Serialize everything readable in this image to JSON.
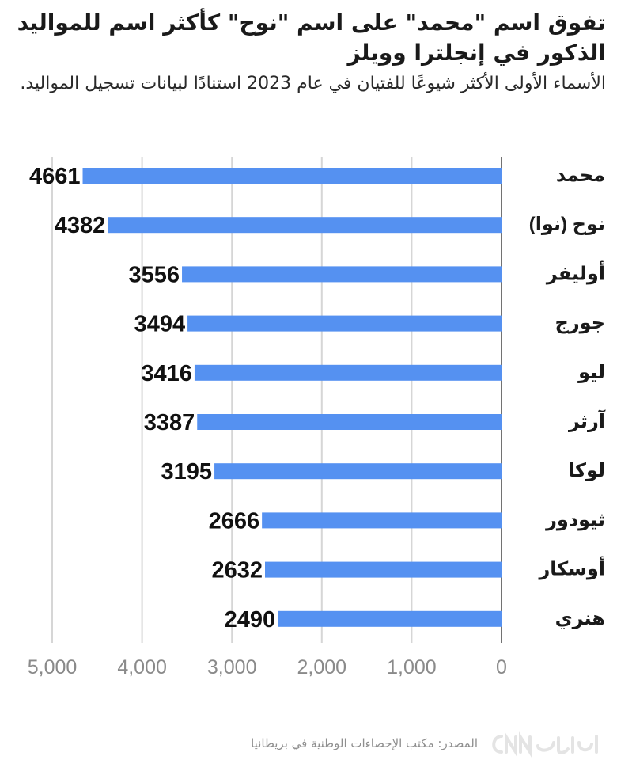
{
  "title": "تفوق اسم \"محمد\" على اسم \"نوح\" كأكثر اسم للمواليد الذكور في إنجلترا وويلز",
  "subtitle": "الأسماء الأولى الأكثر شيوعًا للفتيان في عام 2023 استنادًا لبيانات تسجيل المواليد.",
  "source": "المصدر: مكتب الإحصاءات الوطنية في بريطانيا",
  "logo": {
    "icon": "cnn-arabic-logo",
    "color": "#e4e4e4",
    "text": "بالعربية"
  },
  "colors": {
    "bar": "#5591f1",
    "grid": "#d6d6d6",
    "tick_text": "#8a8a8a"
  },
  "chart_data": {
    "type": "bar",
    "orientation": "horizontal",
    "categories": [
      "محمد",
      "نوح (نوا)",
      "أوليفر",
      "جورج",
      "ليو",
      "آرثر",
      "لوكا",
      "ثيودور",
      "أوسكار",
      "هنري"
    ],
    "values": [
      4661,
      4382,
      3556,
      3494,
      3416,
      3387,
      3195,
      2666,
      2632,
      2490
    ],
    "x_ticks": [
      "0",
      "1,000",
      "2,000",
      "3,000",
      "4,000",
      "5,000"
    ],
    "x_tick_values": [
      0,
      1000,
      2000,
      3000,
      4000,
      5000
    ],
    "xlim": [
      0,
      5000
    ],
    "x_axis_direction": "right-to-left",
    "grid": true,
    "data_labels": true,
    "legend": "none"
  }
}
